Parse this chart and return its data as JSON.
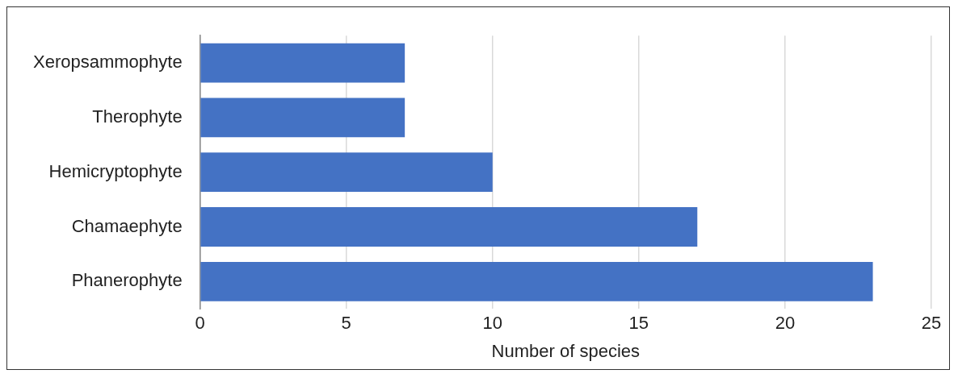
{
  "chart_data": {
    "type": "bar",
    "orientation": "horizontal",
    "categories": [
      "Xeropsammophyte",
      "Therophyte",
      "Hemicryptophyte",
      "Chamaephyte",
      "Phanerophyte"
    ],
    "values": [
      7,
      7,
      10,
      17,
      23
    ],
    "color": "#4472c4",
    "xlabel": "Number of species",
    "xlim": [
      0,
      25
    ],
    "xticks": [
      0,
      5,
      10,
      15,
      20,
      25
    ],
    "grid": "x",
    "legend": false
  }
}
